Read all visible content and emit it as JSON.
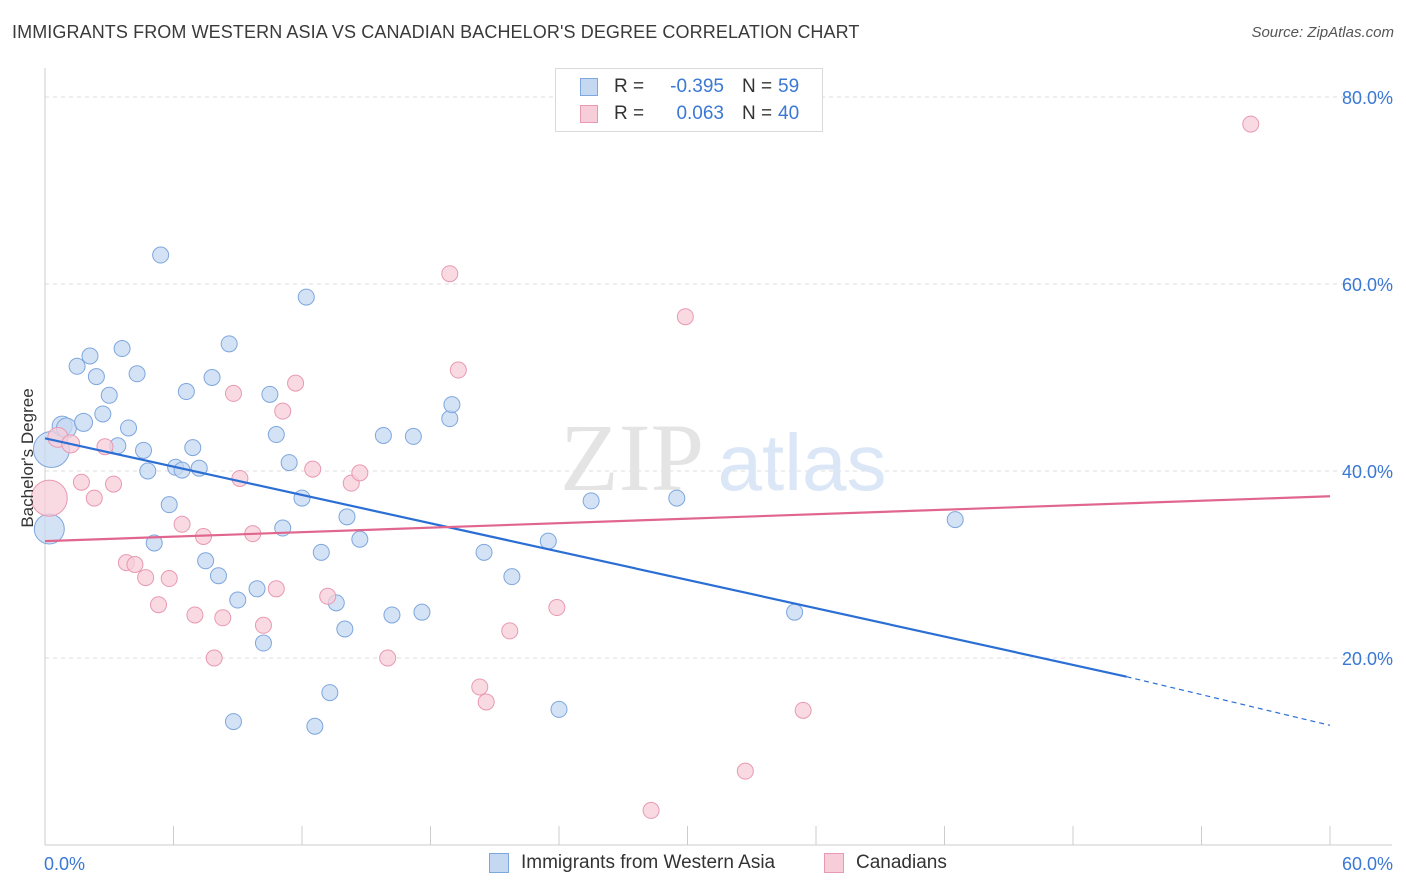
{
  "title": "IMMIGRANTS FROM WESTERN ASIA VS CANADIAN BACHELOR'S DEGREE CORRELATION CHART",
  "source": "Source: ZipAtlas.com",
  "watermark": {
    "zip": "ZIP",
    "atlas": "atlas"
  },
  "colors": {
    "blue_fill": "#c5d8f2",
    "blue_stroke": "#7ea7dd",
    "blue_line": "#2c6fd4",
    "pink_fill": "#f7cdd9",
    "pink_stroke": "#e899b2",
    "pink_line": "#e0668e",
    "tick_text": "#3a78d4",
    "grid": "#dddddd"
  },
  "legend": {
    "rows": [
      {
        "r_label": "R =",
        "r_value": "-0.395",
        "n_label": "N =",
        "n_value": "59",
        "color": "blue"
      },
      {
        "r_label": "R =",
        "r_value": "0.063",
        "n_label": "N =",
        "n_value": "40",
        "color": "pink"
      }
    ]
  },
  "bottom_legend": [
    {
      "label": "Immigrants from Western Asia",
      "color": "blue"
    },
    {
      "label": "Canadians",
      "color": "pink"
    }
  ],
  "chart_data": {
    "type": "scatter",
    "title": "IMMIGRANTS FROM WESTERN ASIA VS CANADIAN BACHELOR'S DEGREE CORRELATION CHART",
    "xlabel": "",
    "ylabel": "Bachelor's Degree",
    "xlim": [
      0,
      60
    ],
    "ylim": [
      0,
      80
    ],
    "x_tick_labels": [
      {
        "value": 0,
        "label": "0.0%"
      },
      {
        "value": 60,
        "label": "60.0%"
      }
    ],
    "y_tick_labels": [
      {
        "value": 20,
        "label": "20.0%"
      },
      {
        "value": 40,
        "label": "40.0%"
      },
      {
        "value": 60,
        "label": "60.0%"
      },
      {
        "value": 80,
        "label": "80.0%"
      }
    ],
    "series": [
      {
        "name": "Immigrants from Western Asia",
        "color": "blue",
        "trend": {
          "x_start": 0,
          "y_start": 43.5,
          "x_solid_end": 50.5,
          "y_solid_end": 18.0,
          "x_end": 60,
          "y_end": 12.8
        },
        "points": [
          [
            0.3,
            42.3,
            18
          ],
          [
            0.2,
            33.8,
            15
          ],
          [
            0.8,
            44.8,
            10
          ],
          [
            1.0,
            44.6,
            10
          ],
          [
            1.5,
            51.2,
            8
          ],
          [
            1.8,
            45.2,
            9
          ],
          [
            2.1,
            52.3,
            8
          ],
          [
            2.4,
            50.1,
            8
          ],
          [
            2.7,
            46.1,
            8
          ],
          [
            3.0,
            48.1,
            8
          ],
          [
            3.4,
            42.7,
            8
          ],
          [
            3.6,
            53.1,
            8
          ],
          [
            3.9,
            44.6,
            8
          ],
          [
            4.3,
            50.4,
            8
          ],
          [
            4.6,
            42.2,
            8
          ],
          [
            4.8,
            40.0,
            8
          ],
          [
            5.1,
            32.3,
            8
          ],
          [
            5.4,
            63.1,
            8
          ],
          [
            5.8,
            36.4,
            8
          ],
          [
            6.1,
            40.4,
            8
          ],
          [
            6.4,
            40.1,
            8
          ],
          [
            6.6,
            48.5,
            8
          ],
          [
            6.9,
            42.5,
            8
          ],
          [
            7.2,
            40.3,
            8
          ],
          [
            7.5,
            30.4,
            8
          ],
          [
            7.8,
            50.0,
            8
          ],
          [
            8.1,
            28.8,
            8
          ],
          [
            8.6,
            53.6,
            8
          ],
          [
            8.8,
            13.2,
            8
          ],
          [
            9.0,
            26.2,
            8
          ],
          [
            9.9,
            27.4,
            8
          ],
          [
            10.2,
            21.6,
            8
          ],
          [
            10.5,
            48.2,
            8
          ],
          [
            10.8,
            43.9,
            8
          ],
          [
            11.1,
            33.9,
            8
          ],
          [
            11.4,
            40.9,
            8
          ],
          [
            12.0,
            37.1,
            8
          ],
          [
            12.2,
            58.6,
            8
          ],
          [
            12.6,
            12.7,
            8
          ],
          [
            12.9,
            31.3,
            8
          ],
          [
            13.3,
            16.3,
            8
          ],
          [
            13.6,
            25.9,
            8
          ],
          [
            14.0,
            23.1,
            8
          ],
          [
            14.1,
            35.1,
            8
          ],
          [
            14.7,
            32.7,
            8
          ],
          [
            15.8,
            43.8,
            8
          ],
          [
            16.2,
            24.6,
            8
          ],
          [
            17.2,
            43.7,
            8
          ],
          [
            17.6,
            24.9,
            8
          ],
          [
            18.9,
            45.6,
            8
          ],
          [
            19.0,
            47.1,
            8
          ],
          [
            20.5,
            31.3,
            8
          ],
          [
            21.8,
            28.7,
            8
          ],
          [
            23.5,
            32.5,
            8
          ],
          [
            24.0,
            14.5,
            8
          ],
          [
            25.5,
            36.8,
            8
          ],
          [
            29.5,
            37.1,
            8
          ],
          [
            35.0,
            24.9,
            8
          ],
          [
            42.5,
            34.8,
            8
          ]
        ]
      },
      {
        "name": "Canadians",
        "color": "pink",
        "trend": {
          "x_start": 0,
          "y_start": 32.5,
          "x_end": 60,
          "y_end": 37.3
        },
        "points": [
          [
            0.2,
            37.1,
            18
          ],
          [
            0.6,
            43.6,
            10
          ],
          [
            1.2,
            42.9,
            9
          ],
          [
            1.7,
            38.8,
            8
          ],
          [
            2.3,
            37.1,
            8
          ],
          [
            2.8,
            42.6,
            8
          ],
          [
            3.2,
            38.6,
            8
          ],
          [
            3.8,
            30.2,
            8
          ],
          [
            4.2,
            30.0,
            8
          ],
          [
            4.7,
            28.6,
            8
          ],
          [
            5.3,
            25.7,
            8
          ],
          [
            5.8,
            28.5,
            8
          ],
          [
            6.4,
            34.3,
            8
          ],
          [
            7.0,
            24.6,
            8
          ],
          [
            7.4,
            33.0,
            8
          ],
          [
            7.9,
            20.0,
            8
          ],
          [
            8.3,
            24.3,
            8
          ],
          [
            8.8,
            48.3,
            8
          ],
          [
            9.1,
            39.2,
            8
          ],
          [
            9.7,
            33.3,
            8
          ],
          [
            10.2,
            23.5,
            8
          ],
          [
            10.8,
            27.4,
            8
          ],
          [
            11.1,
            46.4,
            8
          ],
          [
            11.7,
            49.4,
            8
          ],
          [
            12.5,
            40.2,
            8
          ],
          [
            13.2,
            26.6,
            8
          ],
          [
            14.3,
            38.7,
            8
          ],
          [
            14.7,
            39.8,
            8
          ],
          [
            16.0,
            20.0,
            8
          ],
          [
            18.9,
            61.1,
            8
          ],
          [
            19.3,
            50.8,
            8
          ],
          [
            20.3,
            16.9,
            8
          ],
          [
            20.6,
            15.3,
            8
          ],
          [
            21.7,
            22.9,
            8
          ],
          [
            23.9,
            25.4,
            8
          ],
          [
            28.3,
            3.7,
            8
          ],
          [
            29.9,
            56.5,
            8
          ],
          [
            32.7,
            7.9,
            8
          ],
          [
            35.4,
            14.4,
            8
          ],
          [
            56.3,
            77.1,
            8
          ]
        ]
      }
    ]
  }
}
